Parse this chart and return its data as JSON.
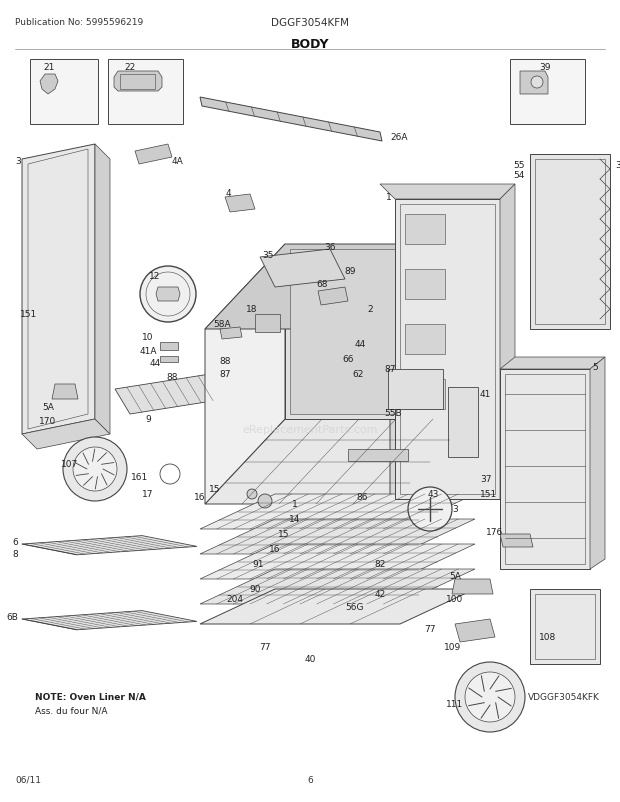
{
  "title": "BODY",
  "pub_no": "Publication No: 5995596219",
  "model": "DGGF3054KFM",
  "date": "06/11",
  "page": "6",
  "note_line1": "NOTE: Oven Liner N/A",
  "note_line2": "Ass. du four N/A",
  "watermark": "eReplacementParts.com",
  "bg_color": "#ffffff",
  "sub_model": "VDGGF3054KFK",
  "line_color": "#444444",
  "fig_width": 6.2,
  "fig_height": 8.03,
  "dpi": 100
}
